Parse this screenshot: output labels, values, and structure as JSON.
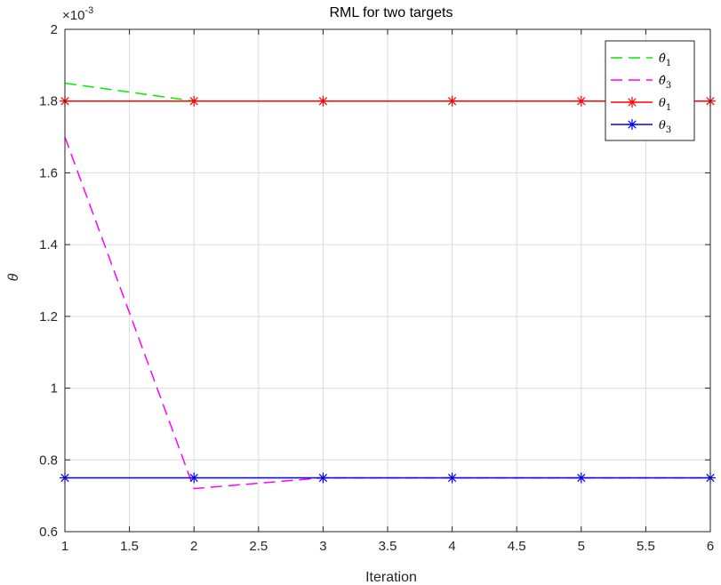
{
  "chart_data": {
    "type": "line",
    "title": "RML for two targets",
    "xlabel": "Iteration",
    "ylabel": "θ",
    "y_exponent_label": "×10",
    "y_exponent_power": "-3",
    "xlim": [
      1,
      6
    ],
    "ylim": [
      0.6,
      2.0
    ],
    "grid": true,
    "legend_position": "top-right",
    "x_ticks": [
      "1",
      "1.5",
      "2",
      "2.5",
      "3",
      "3.5",
      "4",
      "4.5",
      "5",
      "5.5",
      "6"
    ],
    "y_ticks": [
      "0.6",
      "0.8",
      "1",
      "1.2",
      "1.4",
      "1.6",
      "1.8",
      "2"
    ],
    "x": [
      1,
      2,
      3,
      4,
      5,
      6
    ],
    "series": [
      {
        "name": "θ̂1",
        "label_base": "θ̂",
        "label_sub": "1",
        "color": "#00ee00",
        "style": "dashed",
        "marker": "none",
        "values": [
          1.85,
          1.8,
          1.8,
          1.8,
          1.8,
          1.8
        ]
      },
      {
        "name": "θ̂3",
        "label_base": "θ̂",
        "label_sub": "3",
        "color": "#ff00ff",
        "style": "dashed",
        "marker": "none",
        "values": [
          1.7,
          0.72,
          0.75,
          0.75,
          0.75,
          0.75
        ]
      },
      {
        "name": "θ1",
        "label_base": "θ",
        "label_sub": "1",
        "color": "#ff0000",
        "style": "solid",
        "marker": "asterisk",
        "values": [
          1.8,
          1.8,
          1.8,
          1.8,
          1.8,
          1.8
        ]
      },
      {
        "name": "θ3",
        "label_base": "θ",
        "label_sub": "3",
        "color": "#0000ff",
        "style": "solid",
        "marker": "asterisk",
        "values": [
          0.75,
          0.75,
          0.75,
          0.75,
          0.75,
          0.75
        ]
      }
    ]
  }
}
